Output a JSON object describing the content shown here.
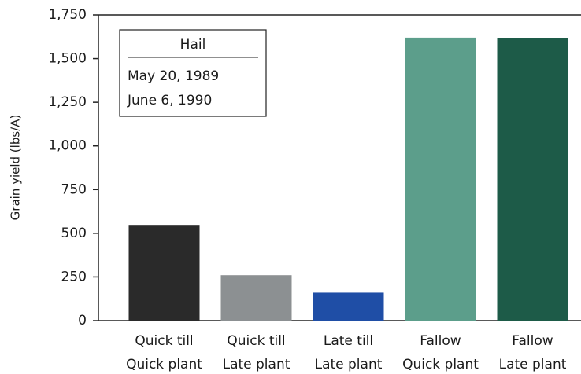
{
  "chart_data": {
    "type": "bar",
    "y_label": "Grain yield (lbs/A)",
    "categories": [
      [
        "Quick till",
        "Quick plant"
      ],
      [
        "Quick till",
        "Late plant"
      ],
      [
        "Late till",
        "Late plant"
      ],
      [
        "Fallow",
        "Quick plant"
      ],
      [
        "Fallow",
        "Late plant"
      ]
    ],
    "values": [
      548,
      260,
      160,
      1620,
      1618
    ],
    "colors": [
      "#2a2a2a",
      "#8c9092",
      "#1f4ea6",
      "#5c9e8b",
      "#1d5b48"
    ],
    "ylim": [
      0,
      1750
    ],
    "yticks": [
      0,
      250,
      500,
      750,
      {
        "value": 1000,
        "label": "1,000"
      },
      {
        "value": 1250,
        "label": "1,250"
      },
      {
        "value": 1500,
        "label": "1,500"
      },
      {
        "value": 1750,
        "label": "1,750"
      }
    ],
    "annotation": {
      "title": "Hail",
      "lines": [
        "May 20, 1989",
        "June 6, 1990"
      ]
    }
  }
}
